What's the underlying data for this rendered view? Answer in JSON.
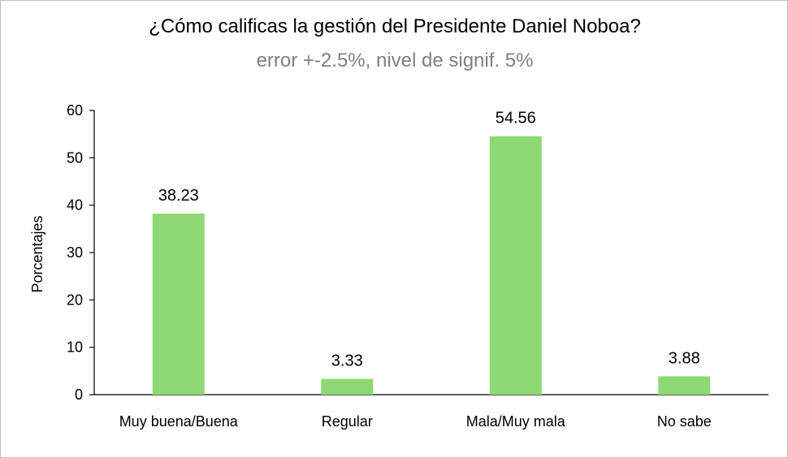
{
  "chart_data": {
    "type": "bar",
    "title": "¿Cómo calificas la gestión del Presidente Daniel Noboa?",
    "subtitle": "error +-2.5%, nivel de signif. 5%",
    "xlabel": "",
    "ylabel": "Porcentajes",
    "ylim": [
      0,
      60
    ],
    "yticks": [
      0,
      10,
      20,
      30,
      40,
      50,
      60
    ],
    "categories": [
      "Muy buena/Buena",
      "Regular",
      "Mala/Muy mala",
      "No sabe"
    ],
    "values": [
      38.23,
      3.33,
      54.56,
      3.88
    ],
    "data_labels": [
      "38.23",
      "3.33",
      "54.56",
      "3.88"
    ],
    "grid": false,
    "legend": "none",
    "bar_color": "#8ED973"
  }
}
